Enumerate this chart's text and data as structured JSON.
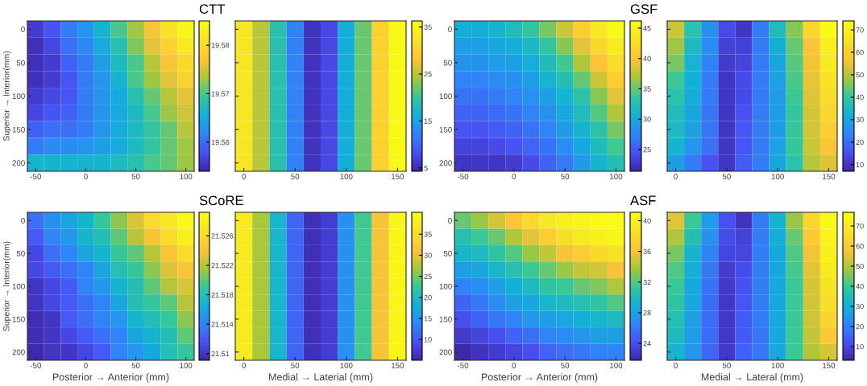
{
  "chart_data": [
    {
      "type": "heatmap",
      "title": "CTT",
      "ylabel": "Superior → Interior(mm)",
      "categories": [
        "-50",
        null,
        null,
        "0",
        null,
        null,
        "50",
        null,
        null,
        "100"
      ],
      "y_categories": [
        "0",
        null,
        "50",
        null,
        "100",
        null,
        "150",
        null,
        "200"
      ],
      "clim": [
        19.554,
        19.585
      ],
      "cticks": [
        19.56,
        19.57,
        19.58
      ],
      "cells": [
        [
          19.556,
          19.558,
          19.561,
          19.563,
          19.566,
          19.57,
          19.573,
          19.577,
          19.581,
          19.584
        ],
        [
          19.555,
          19.557,
          19.56,
          19.562,
          19.565,
          19.568,
          19.572,
          19.576,
          19.579,
          19.582
        ],
        [
          19.555,
          19.556,
          19.559,
          19.561,
          19.564,
          19.567,
          19.57,
          19.574,
          19.577,
          19.58
        ],
        [
          19.555,
          19.556,
          19.558,
          19.561,
          19.563,
          19.566,
          19.57,
          19.573,
          19.576,
          19.579
        ],
        [
          19.556,
          19.557,
          19.558,
          19.561,
          19.563,
          19.565,
          19.568,
          19.571,
          19.574,
          19.576
        ],
        [
          19.557,
          19.558,
          19.559,
          19.561,
          19.563,
          19.565,
          19.567,
          19.57,
          19.573,
          19.575
        ],
        [
          19.559,
          19.56,
          19.56,
          19.561,
          19.563,
          19.565,
          19.567,
          19.569,
          19.571,
          19.574
        ],
        [
          19.561,
          19.562,
          19.562,
          19.563,
          19.564,
          19.565,
          19.567,
          19.569,
          19.571,
          19.573
        ],
        [
          19.566,
          19.566,
          19.566,
          19.566,
          19.566,
          19.567,
          19.568,
          19.57,
          19.571,
          19.573
        ]
      ]
    },
    {
      "type": "heatmap",
      "categories": [
        "0",
        null,
        null,
        "50",
        null,
        null,
        "100",
        null,
        null,
        "150"
      ],
      "y_categories": [
        "0",
        null,
        "50",
        null,
        "100",
        null,
        "150",
        null,
        "200"
      ],
      "tick_labels": "x",
      "clim": [
        4.3,
        36.3
      ],
      "cticks": [
        5,
        15,
        25,
        35
      ],
      "cells": [
        [
          33,
          25,
          19,
          12,
          5.5,
          7.5,
          16,
          22,
          30,
          36
        ],
        [
          33,
          25,
          19,
          12,
          5.5,
          7.5,
          16,
          22,
          30,
          36
        ],
        [
          33,
          25,
          19,
          12,
          5.5,
          7.5,
          16,
          22,
          30,
          36
        ],
        [
          33,
          25,
          19,
          12,
          5.5,
          7.5,
          16,
          22,
          30,
          36
        ],
        [
          33,
          25,
          19,
          12,
          5.5,
          7.5,
          16,
          22,
          30,
          36
        ],
        [
          33,
          25,
          19,
          12,
          5.5,
          7.5,
          16,
          22,
          30,
          36
        ],
        [
          33,
          25,
          19,
          12,
          5.5,
          7.5,
          16,
          22,
          30,
          36
        ],
        [
          33,
          25,
          19,
          12,
          5.5,
          7.5,
          16,
          22,
          30,
          36
        ],
        [
          33,
          25,
          19,
          12,
          5.5,
          7.5,
          16,
          22,
          30,
          36
        ]
      ]
    },
    {
      "type": "heatmap",
      "title": "GSF",
      "categories": [
        "-50",
        null,
        null,
        "0",
        null,
        null,
        "50",
        null,
        null,
        "100"
      ],
      "y_categories": [
        "0",
        null,
        "50",
        null,
        "100",
        null,
        "150",
        null,
        "200"
      ],
      "clim": [
        21.4,
        46.2
      ],
      "cticks": [
        25,
        30,
        35,
        40,
        45
      ],
      "cells": [
        [
          30.5,
          30.5,
          31,
          32,
          33.5,
          35.5,
          38,
          41,
          43.5,
          46
        ],
        [
          29.5,
          29.5,
          30,
          30.5,
          31.5,
          33.5,
          36,
          39,
          42,
          44
        ],
        [
          28.5,
          28.5,
          29,
          29.5,
          30.5,
          32,
          34,
          37,
          40,
          42.5
        ],
        [
          27.5,
          27.5,
          28,
          28.5,
          29.5,
          31,
          32.5,
          35,
          38,
          41
        ],
        [
          26.5,
          26.5,
          27,
          27.5,
          28.5,
          29.5,
          31,
          33,
          36,
          39
        ],
        [
          25.5,
          25.5,
          26,
          26.5,
          27.5,
          28.5,
          30,
          32,
          34.5,
          37
        ],
        [
          24.5,
          24.5,
          25,
          25.5,
          26.5,
          27.5,
          29,
          31,
          33,
          35.5
        ],
        [
          23.5,
          23.5,
          24,
          24.5,
          25.5,
          26.5,
          28,
          30,
          32,
          34
        ],
        [
          22.5,
          22.5,
          22.5,
          23,
          24,
          25.5,
          27,
          29,
          31,
          32.5
        ]
      ]
    },
    {
      "type": "heatmap",
      "categories": [
        "0",
        null,
        null,
        "50",
        null,
        null,
        "100",
        null,
        null,
        "150"
      ],
      "y_categories": [
        "0",
        null,
        "50",
        null,
        "100",
        null,
        "150",
        null,
        "200"
      ],
      "tick_labels": "x",
      "clim": [
        7,
        74
      ],
      "cticks": [
        10,
        20,
        30,
        40,
        50,
        60,
        70
      ],
      "cells": [
        [
          52,
          38,
          26,
          14,
          10,
          22,
          36,
          46,
          62,
          74
        ],
        [
          48,
          35,
          25,
          12,
          12,
          22,
          32,
          44,
          57,
          70
        ],
        [
          45,
          33,
          23,
          11,
          13,
          22,
          30,
          43,
          56,
          68
        ],
        [
          41,
          32,
          22,
          10,
          14,
          22,
          29,
          42,
          55,
          66
        ],
        [
          38,
          31,
          22,
          10,
          14,
          22,
          28,
          41,
          54,
          64
        ],
        [
          36,
          30,
          21,
          10,
          15,
          22,
          28,
          40,
          53,
          62
        ],
        [
          35,
          29,
          21,
          10,
          16,
          22,
          28,
          40,
          53,
          60
        ],
        [
          33,
          27,
          20,
          10,
          16,
          22,
          29,
          40,
          52,
          58
        ],
        [
          28,
          22,
          15,
          10,
          17,
          22,
          30,
          38,
          50,
          54
        ]
      ]
    },
    {
      "type": "heatmap",
      "title": "SCoRE",
      "xlabel": "Posterior → Anterior (mm)",
      "ylabel": "Superior → Interior(mm)",
      "categories": [
        "-50",
        null,
        null,
        "0",
        null,
        null,
        "50",
        null,
        null,
        "100"
      ],
      "y_categories": [
        "0",
        null,
        "50",
        null,
        "100",
        null,
        "150",
        null,
        "200"
      ],
      "clim": [
        21.5091,
        21.5292
      ],
      "cticks": [
        21.51,
        21.514,
        21.518,
        21.522,
        21.526
      ],
      "cells": [
        [
          21.513,
          21.5147,
          21.516,
          21.517,
          21.519,
          21.521,
          21.523,
          21.526,
          21.527,
          21.529
        ],
        [
          21.512,
          21.514,
          21.515,
          21.517,
          21.518,
          21.52,
          21.522,
          21.524,
          21.526,
          21.528
        ],
        [
          21.511,
          21.513,
          21.514,
          21.516,
          21.517,
          21.519,
          21.52,
          21.522,
          21.524,
          21.526
        ],
        [
          21.511,
          21.512,
          21.513,
          21.514,
          21.516,
          21.518,
          21.519,
          21.521,
          21.523,
          21.524
        ],
        [
          21.51,
          21.511,
          21.512,
          21.514,
          21.515,
          21.517,
          21.518,
          21.52,
          21.522,
          21.523
        ],
        [
          21.51,
          21.511,
          21.512,
          21.513,
          21.514,
          21.516,
          21.518,
          21.519,
          21.52,
          21.522
        ],
        [
          21.5095,
          21.51,
          21.512,
          21.513,
          21.514,
          21.515,
          21.517,
          21.518,
          21.519,
          21.521
        ],
        [
          21.5095,
          21.51,
          21.511,
          21.512,
          21.513,
          21.514,
          21.516,
          21.517,
          21.518,
          21.52
        ],
        [
          21.5093,
          21.51,
          21.51,
          21.511,
          21.512,
          21.514,
          21.515,
          21.516,
          21.518,
          21.519
        ]
      ]
    },
    {
      "type": "heatmap",
      "xlabel": "Medial → Laterial (mm)",
      "categories": [
        "0",
        null,
        null,
        "50",
        null,
        null,
        "100",
        null,
        null,
        "150"
      ],
      "y_categories": [
        "0",
        null,
        "50",
        null,
        "100",
        null,
        "150",
        null,
        "200"
      ],
      "tick_labels": "x",
      "clim": [
        5.1,
        40.2
      ],
      "cticks": [
        10,
        15,
        20,
        25,
        30,
        35
      ],
      "cells": [
        [
          37,
          27,
          19,
          11,
          6,
          7.5,
          15,
          23,
          31,
          39
        ],
        [
          37,
          27,
          19,
          11,
          6,
          7.5,
          15,
          23,
          31,
          39
        ],
        [
          37,
          27,
          19,
          11,
          6,
          7.5,
          15,
          23,
          31,
          39
        ],
        [
          37,
          27,
          19,
          11,
          6,
          7.5,
          15,
          23,
          31,
          39
        ],
        [
          37,
          27,
          19,
          11,
          6,
          7.5,
          15,
          23,
          31,
          39
        ],
        [
          37,
          27,
          19,
          11,
          6,
          7.5,
          15,
          23,
          31,
          39
        ],
        [
          37,
          27,
          19,
          11,
          6,
          7.5,
          15,
          23,
          31,
          39
        ],
        [
          37,
          27,
          19,
          11,
          6,
          7.5,
          15,
          23,
          31,
          39
        ],
        [
          37,
          27,
          19,
          11,
          6,
          7.5,
          15,
          23,
          31,
          39
        ]
      ]
    },
    {
      "type": "heatmap",
      "title": "ASF",
      "xlabel": "Posterior → Anterior (mm)",
      "categories": [
        "-50",
        null,
        null,
        "0",
        null,
        null,
        "50",
        null,
        null,
        "100"
      ],
      "y_categories": [
        "0",
        null,
        "50",
        null,
        "100",
        null,
        "150",
        null,
        "200"
      ],
      "clim": [
        21.8,
        41.1
      ],
      "cticks": [
        24,
        28,
        32,
        36,
        40
      ],
      "cells": [
        [
          32.5,
          33.5,
          35,
          36.5,
          38,
          39,
          40,
          40.5,
          41,
          41
        ],
        [
          30.5,
          31.5,
          32.5,
          34,
          35.5,
          37,
          38.5,
          39.5,
          40,
          40.5
        ],
        [
          29.5,
          30,
          31,
          32,
          33.5,
          34.5,
          36,
          37,
          38,
          38.5
        ],
        [
          28,
          28.5,
          29.5,
          30.5,
          31.5,
          32.5,
          33.5,
          34.5,
          35,
          36
        ],
        [
          26.5,
          27,
          28,
          29,
          30,
          31,
          31.5,
          32.5,
          33,
          34
        ],
        [
          25,
          26,
          27,
          28,
          28.5,
          29.5,
          30,
          30.5,
          31,
          32
        ],
        [
          24,
          25,
          26,
          26.5,
          27.5,
          28,
          28.5,
          29,
          29.5,
          30
        ],
        [
          23,
          23.5,
          24,
          25,
          25.5,
          26.5,
          27,
          27.5,
          28,
          28
        ],
        [
          22,
          22.5,
          23,
          23.5,
          24,
          25,
          25.5,
          26,
          26.5,
          26.5
        ]
      ]
    },
    {
      "type": "heatmap",
      "xlabel": "Medial → Lateral (mm)",
      "categories": [
        "0",
        null,
        null,
        "50",
        null,
        null,
        "100",
        null,
        null,
        "150"
      ],
      "y_categories": [
        "0",
        null,
        "50",
        null,
        "100",
        null,
        "150",
        null,
        "200"
      ],
      "tick_labels": "x",
      "clim": [
        3.2,
        76.8
      ],
      "cticks": [
        10,
        20,
        30,
        40,
        50,
        60,
        70
      ],
      "cells": [
        [
          55,
          40,
          26,
          12,
          6,
          20,
          32,
          48,
          64,
          76
        ],
        [
          50,
          36,
          24,
          11,
          9,
          20,
          30,
          44,
          60,
          74
        ],
        [
          45,
          32,
          21,
          10,
          10,
          20,
          29,
          42,
          57,
          72
        ],
        [
          42,
          30,
          19,
          8,
          11,
          20,
          29,
          41,
          55,
          70
        ],
        [
          40,
          29,
          18,
          7,
          12,
          20,
          29,
          40,
          54,
          68
        ],
        [
          38,
          28,
          17,
          7,
          13,
          20,
          29,
          40,
          53,
          66
        ],
        [
          36,
          27,
          17,
          7,
          14,
          20,
          29,
          40,
          53,
          63
        ],
        [
          34,
          26,
          17,
          7,
          14,
          19,
          29,
          40,
          52,
          60
        ],
        [
          32,
          25,
          16,
          7,
          15,
          19,
          29,
          40,
          50,
          54
        ]
      ]
    }
  ]
}
